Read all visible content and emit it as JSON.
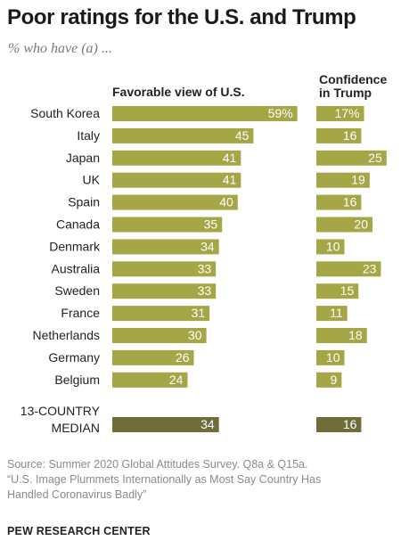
{
  "title": "Poor ratings for the U.S. and Trump",
  "subtitle": "% who have (a) ...",
  "columns": {
    "favorable": "Favorable view of U.S.",
    "confidence_line1": "Confidence",
    "confidence_line2": "in Trump"
  },
  "chart_data": {
    "type": "bar",
    "categories": [
      "South Korea",
      "Italy",
      "Japan",
      "UK",
      "Spain",
      "Canada",
      "Denmark",
      "Australia",
      "Sweden",
      "France",
      "Netherlands",
      "Germany",
      "Belgium"
    ],
    "series": [
      {
        "name": "Favorable view of U.S.",
        "values": [
          59,
          45,
          41,
          41,
          40,
          35,
          34,
          33,
          33,
          31,
          30,
          26,
          24
        ],
        "value_labels": [
          "59%",
          "45",
          "41",
          "41",
          "40",
          "35",
          "34",
          "33",
          "33",
          "31",
          "30",
          "26",
          "24"
        ]
      },
      {
        "name": "Confidence in Trump",
        "values": [
          17,
          16,
          25,
          19,
          16,
          20,
          10,
          23,
          15,
          11,
          18,
          10,
          9
        ],
        "value_labels": [
          "17%",
          "16",
          "25",
          "19",
          "16",
          "20",
          "10",
          "23",
          "15",
          "11",
          "18",
          "10",
          "9"
        ]
      }
    ],
    "median": {
      "label_line1": "13-COUNTRY",
      "label_line2": "MEDIAN",
      "values": [
        34,
        16
      ]
    },
    "colors": {
      "bar": "#a5a646",
      "median_bar": "#6f6d3a",
      "bar_text": "#ffffff"
    }
  },
  "source_line1": "Source: Summer 2020 Global Attitudes Survey. Q8a & Q15a.",
  "source_line2": "“U.S. Image Plummets Internationally as Most Say Country Has",
  "source_line3": "Handled Coronavirus Badly”",
  "credit": "PEW RESEARCH CENTER"
}
